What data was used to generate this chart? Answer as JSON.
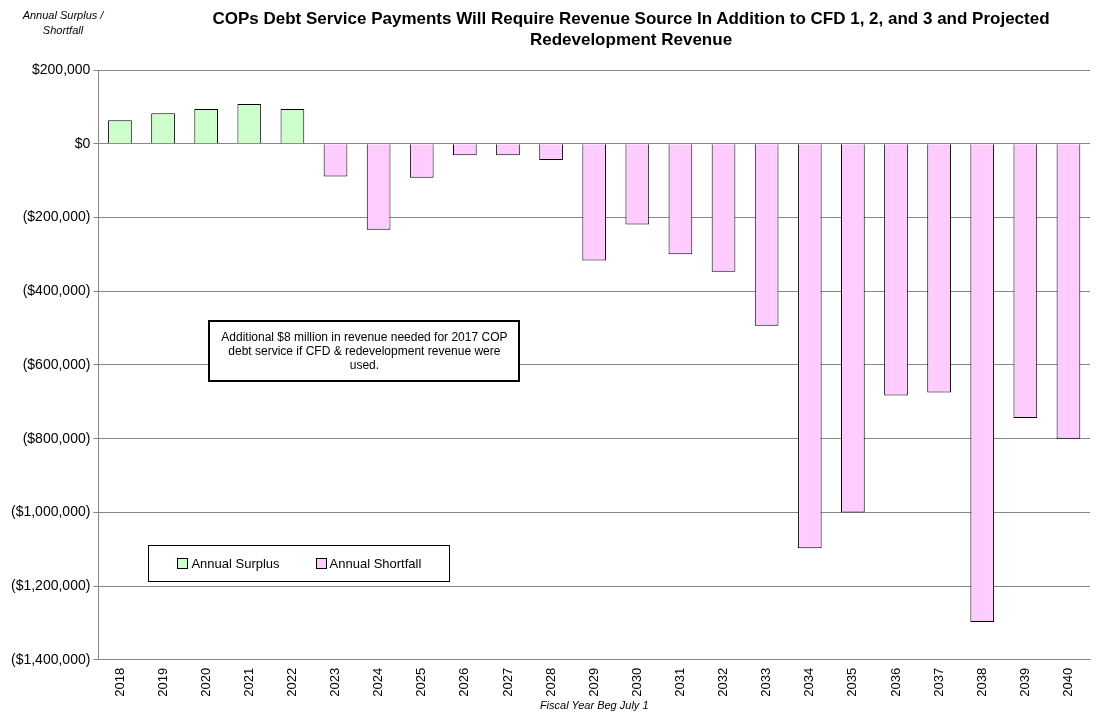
{
  "chart_data": {
    "type": "bar",
    "title": "COPs Debt Service Payments Will Require Revenue Source In Addition to  CFD 1, 2, and 3 and Projected Redevelopment Revenue",
    "ylabel": "Annual Surplus / Shortfall",
    "xlabel": "Fiscal Year Beg July 1",
    "categories": [
      "2018",
      "2019",
      "2020",
      "2021",
      "2022",
      "2023",
      "2024",
      "2025",
      "2026",
      "2027",
      "2028",
      "2029",
      "2030",
      "2031",
      "2032",
      "2033",
      "2034",
      "2035",
      "2036",
      "2037",
      "2038",
      "2039",
      "2040"
    ],
    "series": [
      {
        "name": "Annual Surplus",
        "color": "#ccffcc",
        "values": [
          64000,
          83000,
          94000,
          108000,
          94000,
          null,
          null,
          null,
          null,
          null,
          null,
          null,
          null,
          null,
          null,
          null,
          null,
          null,
          null,
          null,
          null,
          null,
          null
        ]
      },
      {
        "name": "Annual Shortfall",
        "color": "#ffccff",
        "values": [
          null,
          null,
          null,
          null,
          null,
          -89000,
          -233000,
          -92000,
          -31000,
          -31000,
          -44000,
          -317000,
          -219000,
          -300000,
          -347000,
          -494000,
          -1097000,
          -1000000,
          -683000,
          -675000,
          -1297000,
          -744000,
          -800000
        ]
      }
    ],
    "ylim": [
      -1400000,
      200000
    ],
    "yticks": [
      {
        "value": 200000,
        "label": "$200,000"
      },
      {
        "value": 0,
        "label": "$0"
      },
      {
        "value": -200000,
        "label": "($200,000)"
      },
      {
        "value": -400000,
        "label": "($400,000)"
      },
      {
        "value": -600000,
        "label": "($600,000)"
      },
      {
        "value": -800000,
        "label": "($800,000)"
      },
      {
        "value": -1000000,
        "label": "($1,000,000)"
      },
      {
        "value": -1200000,
        "label": "($1,200,000)"
      },
      {
        "value": -1400000,
        "label": "($1,400,000)"
      }
    ],
    "grid": "y",
    "legend": "bottom left",
    "annotations": [
      "Additional $8 million in revenue needed for 2017 COP debt service if CFD & redevelopment revenue were used."
    ]
  }
}
